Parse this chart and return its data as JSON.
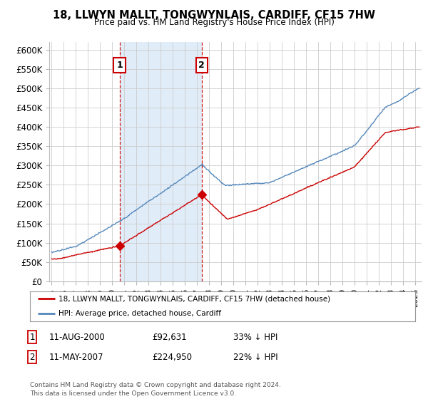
{
  "title_line1": "18, LLWYN MALLT, TONGWYNLAIS, CARDIFF, CF15 7HW",
  "title_line2": "Price paid vs. HM Land Registry's House Price Index (HPI)",
  "legend_label_red": "18, LLWYN MALLT, TONGWYNLAIS, CARDIFF, CF15 7HW (detached house)",
  "legend_label_blue": "HPI: Average price, detached house, Cardiff",
  "annotation1_label": "1",
  "annotation1_date": "11-AUG-2000",
  "annotation1_price": "£92,631",
  "annotation1_hpi": "33% ↓ HPI",
  "annotation2_label": "2",
  "annotation2_date": "11-MAY-2007",
  "annotation2_price": "£224,950",
  "annotation2_hpi": "22% ↓ HPI",
  "footer": "Contains HM Land Registry data © Crown copyright and database right 2024.\nThis data is licensed under the Open Government Licence v3.0.",
  "red_color": "#cc0000",
  "blue_color": "#5588bb",
  "fill_color": "#ddeeff",
  "vline_color": "#cc0000",
  "annotation_box_color": "#cc0000",
  "grid_color": "#cccccc",
  "background_color": "#ffffff",
  "ylim": [
    0,
    620000
  ],
  "yticks": [
    0,
    50000,
    100000,
    150000,
    200000,
    250000,
    300000,
    350000,
    400000,
    450000,
    500000,
    550000,
    600000
  ],
  "sale1_year": 2000.6,
  "sale1_price": 92631,
  "sale2_year": 2007.37,
  "sale2_price": 224950,
  "xmin": 1994.8,
  "xmax": 2025.5
}
